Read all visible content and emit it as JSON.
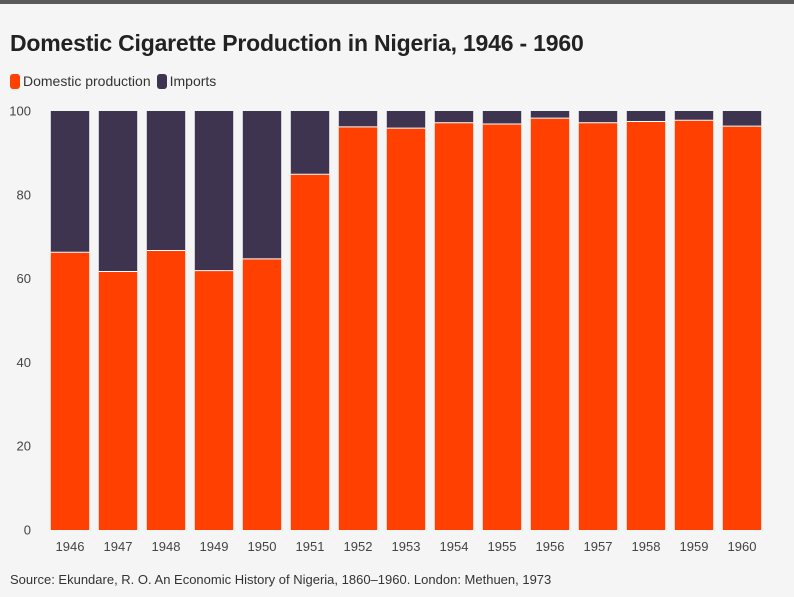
{
  "title": "Domestic Cigarette Production in Nigeria, 1946 - 1960",
  "source": "Source: Ekundare, R. O. An Economic History of Nigeria, 1860–1960. London: Methuen, 1973",
  "chart_data": {
    "type": "bar",
    "stacked": true,
    "title": "Domestic Cigarette Production in Nigeria, 1946 - 1960",
    "xlabel": "",
    "ylabel": "",
    "ylim": [
      0,
      100
    ],
    "yticks": [
      0,
      20,
      40,
      60,
      80,
      100
    ],
    "grid": false,
    "legend_position": "top-left",
    "categories": [
      "1946",
      "1947",
      "1948",
      "1949",
      "1950",
      "1951",
      "1952",
      "1953",
      "1954",
      "1955",
      "1956",
      "1957",
      "1958",
      "1959",
      "1960"
    ],
    "series": [
      {
        "name": "Domestic production",
        "color": "#ff4000",
        "values": [
          66.3,
          61.7,
          66.7,
          61.9,
          64.7,
          84.9,
          96.2,
          95.9,
          97.2,
          96.9,
          98.3,
          97.2,
          97.5,
          97.8,
          96.4
        ]
      },
      {
        "name": "Imports",
        "color": "#3e344f",
        "values": [
          33.7,
          38.3,
          33.3,
          38.1,
          35.3,
          15.1,
          3.8,
          4.1,
          2.8,
          3.1,
          1.7,
          2.8,
          2.5,
          2.2,
          3.6
        ]
      }
    ]
  }
}
